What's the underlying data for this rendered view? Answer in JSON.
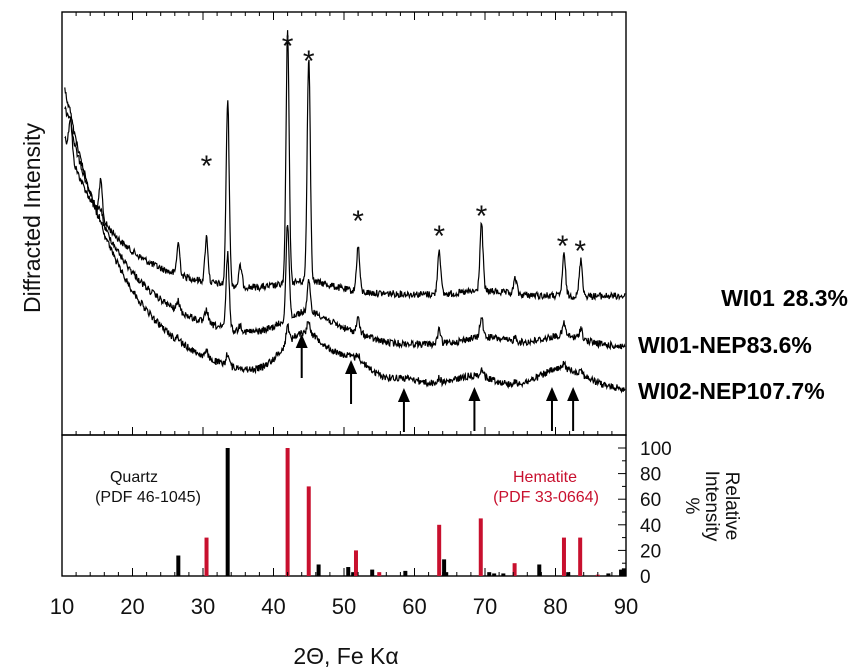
{
  "chart_data": {
    "type": "line",
    "title": "",
    "xlabel": "2Θ, Fe Kα",
    "ylabel": "Diffracted Intensity",
    "xlim": [
      10,
      90
    ],
    "x_ticks": [
      10,
      20,
      30,
      40,
      50,
      60,
      70,
      80,
      90
    ],
    "grid": false,
    "series": [
      {
        "name": "WI01",
        "value_label": "28.3%"
      },
      {
        "name": "WI01-NEP",
        "value_label": "83.6%"
      },
      {
        "name": "WI02-NEP",
        "value_label": "107.7%"
      }
    ],
    "annotations": {
      "star_marker": "*",
      "star_positions": [
        30.5,
        42,
        45,
        52,
        63.5,
        69.5,
        81,
        83.5
      ],
      "arrow_positions": [
        44,
        51,
        58.5,
        68.5,
        79.5,
        82.5
      ]
    },
    "reference_panel": {
      "ylabel": "Relative Intensity %",
      "ylim": [
        0,
        100
      ],
      "y_ticks": [
        0,
        20,
        40,
        60,
        80,
        100
      ],
      "phases": [
        {
          "name": "Quartz",
          "pdf": "(PDF 46-1045)",
          "color": "#000000",
          "peaks": [
            [
              26.5,
              16
            ],
            [
              33.5,
              100
            ],
            [
              46.4,
              9
            ],
            [
              50.6,
              7
            ],
            [
              51.3,
              3
            ],
            [
              54.0,
              5
            ],
            [
              58.7,
              4
            ],
            [
              64.2,
              13
            ],
            [
              64.5,
              3
            ],
            [
              70.6,
              3
            ],
            [
              71.3,
              2
            ],
            [
              72.6,
              2
            ],
            [
              77.7,
              9
            ],
            [
              81.8,
              3
            ],
            [
              87.5,
              2
            ],
            [
              89.3,
              5
            ],
            [
              89.7,
              6
            ]
          ]
        },
        {
          "name": "Hematite",
          "pdf": "(PDF 33-0664)",
          "color": "#c8102e",
          "peaks": [
            [
              30.5,
              30
            ],
            [
              42.0,
              100
            ],
            [
              45.0,
              70
            ],
            [
              51.7,
              20
            ],
            [
              55.0,
              3
            ],
            [
              63.5,
              40
            ],
            [
              69.4,
              45
            ],
            [
              74.2,
              10
            ],
            [
              81.2,
              30
            ],
            [
              83.5,
              30
            ],
            [
              86.0,
              1
            ]
          ]
        }
      ]
    }
  }
}
